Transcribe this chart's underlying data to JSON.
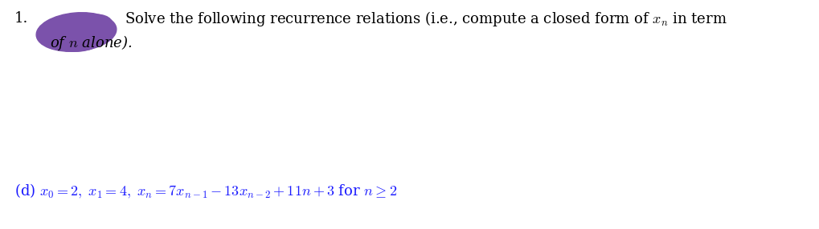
{
  "background_color": "#ffffff",
  "text_color": "#000000",
  "math_color": "#1a1aff",
  "number_text": "1.",
  "blob_color": "#7B52AB",
  "main_text_line1": "Solve the following recurrence relations (i.e., compute a closed form of $x_n$ in term",
  "main_text_line2": "of $n$ alone).",
  "part_d_math": "(d) $x_0 = 2,\\ x_1 = 4,\\ x_n = 7x_{n-1} - 13x_{n-2} + 11n + 3$ for $n \\geq 2$",
  "fig_width": 10.2,
  "fig_height": 2.86,
  "dpi": 100,
  "fontsize_main": 13,
  "fontsize_part": 13
}
